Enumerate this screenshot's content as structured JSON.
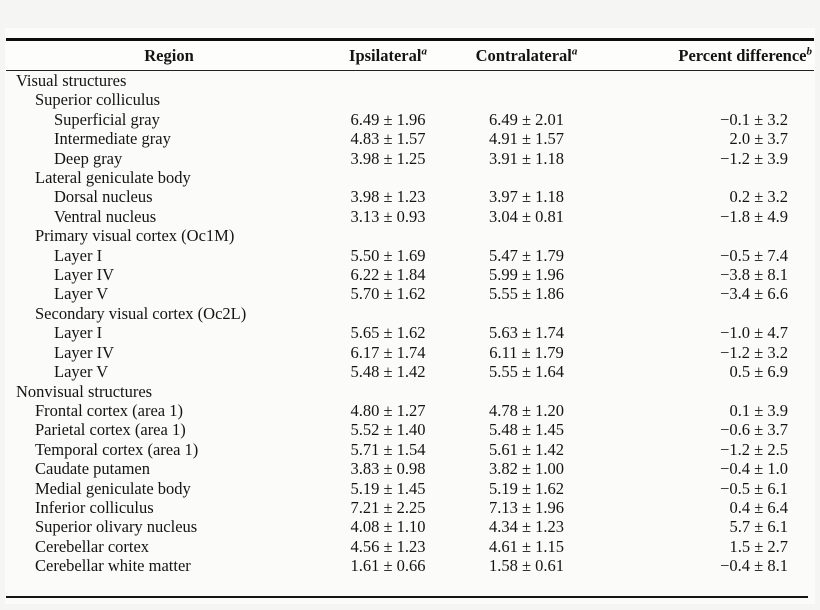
{
  "table": {
    "headers": {
      "region": "Region",
      "ipsilateral": "Ipsilateral",
      "ipsilateral_sup": "a",
      "contralateral": "Contralateral",
      "contralateral_sup": "a",
      "percent_difference": "Percent difference",
      "percent_difference_sup": "b"
    },
    "rows": [
      {
        "label": "Visual structures",
        "indent": 0,
        "ipsi": "",
        "contra": "",
        "pct": ""
      },
      {
        "label": "Superior colliculus",
        "indent": 1,
        "ipsi": "",
        "contra": "",
        "pct": ""
      },
      {
        "label": "Superficial gray",
        "indent": 2,
        "ipsi": "6.49 ± 1.96",
        "contra": "6.49 ± 2.01",
        "pct": "−0.1 ± 3.2"
      },
      {
        "label": "Intermediate gray",
        "indent": 2,
        "ipsi": "4.83 ± 1.57",
        "contra": "4.91 ± 1.57",
        "pct": "2.0 ± 3.7"
      },
      {
        "label": "Deep gray",
        "indent": 2,
        "ipsi": "3.98 ± 1.25",
        "contra": "3.91 ± 1.18",
        "pct": "−1.2 ± 3.9"
      },
      {
        "label": "Lateral geniculate body",
        "indent": 1,
        "ipsi": "",
        "contra": "",
        "pct": ""
      },
      {
        "label": "Dorsal nucleus",
        "indent": 2,
        "ipsi": "3.98 ± 1.23",
        "contra": "3.97 ± 1.18",
        "pct": "0.2 ± 3.2"
      },
      {
        "label": "Ventral nucleus",
        "indent": 2,
        "ipsi": "3.13 ± 0.93",
        "contra": "3.04 ± 0.81",
        "pct": "−1.8 ± 4.9"
      },
      {
        "label": "Primary visual cortex (Oc1M)",
        "indent": 1,
        "ipsi": "",
        "contra": "",
        "pct": ""
      },
      {
        "label": "Layer I",
        "indent": 2,
        "ipsi": "5.50 ± 1.69",
        "contra": "5.47 ± 1.79",
        "pct": "−0.5 ± 7.4"
      },
      {
        "label": "Layer IV",
        "indent": 2,
        "ipsi": "6.22 ± 1.84",
        "contra": "5.99 ± 1.96",
        "pct": "−3.8 ± 8.1"
      },
      {
        "label": "Layer V",
        "indent": 2,
        "ipsi": "5.70 ± 1.62",
        "contra": "5.55 ± 1.86",
        "pct": "−3.4 ± 6.6"
      },
      {
        "label": "Secondary visual cortex (Oc2L)",
        "indent": 1,
        "ipsi": "",
        "contra": "",
        "pct": ""
      },
      {
        "label": "Layer I",
        "indent": 2,
        "ipsi": "5.65 ± 1.62",
        "contra": "5.63 ± 1.74",
        "pct": "−1.0 ± 4.7"
      },
      {
        "label": "Layer IV",
        "indent": 2,
        "ipsi": "6.17 ± 1.74",
        "contra": "6.11 ± 1.79",
        "pct": "−1.2 ± 3.2"
      },
      {
        "label": "Layer V",
        "indent": 2,
        "ipsi": "5.48 ± 1.42",
        "contra": "5.55 ± 1.64",
        "pct": "0.5 ± 6.9"
      },
      {
        "label": "Nonvisual structures",
        "indent": 0,
        "ipsi": "",
        "contra": "",
        "pct": ""
      },
      {
        "label": "Frontal cortex (area 1)",
        "indent": 1,
        "ipsi": "4.80 ± 1.27",
        "contra": "4.78 ± 1.20",
        "pct": "0.1 ± 3.9"
      },
      {
        "label": "Parietal cortex (area 1)",
        "indent": 1,
        "ipsi": "5.52 ± 1.40",
        "contra": "5.48 ± 1.45",
        "pct": "−0.6 ± 3.7"
      },
      {
        "label": "Temporal cortex (area 1)",
        "indent": 1,
        "ipsi": "5.71 ± 1.54",
        "contra": "5.61 ± 1.42",
        "pct": "−1.2 ± 2.5"
      },
      {
        "label": "Caudate putamen",
        "indent": 1,
        "ipsi": "3.83 ± 0.98",
        "contra": "3.82 ± 1.00",
        "pct": "−0.4 ± 1.0"
      },
      {
        "label": "Medial geniculate body",
        "indent": 1,
        "ipsi": "5.19 ± 1.45",
        "contra": "5.19 ± 1.62",
        "pct": "−0.5 ± 6.1"
      },
      {
        "label": "Inferior colliculus",
        "indent": 1,
        "ipsi": "7.21 ± 2.25",
        "contra": "7.13 ± 1.96",
        "pct": "0.4 ± 6.4"
      },
      {
        "label": "Superior olivary nucleus",
        "indent": 1,
        "ipsi": "4.08 ± 1.10",
        "contra": "4.34 ± 1.23",
        "pct": "5.7 ± 6.1"
      },
      {
        "label": "Cerebellar cortex",
        "indent": 1,
        "ipsi": "4.56 ± 1.23",
        "contra": "4.61 ± 1.15",
        "pct": "1.5 ± 2.7"
      },
      {
        "label": "Cerebellar white matter",
        "indent": 1,
        "ipsi": "1.61 ± 0.66",
        "contra": "1.58 ± 0.61",
        "pct": "−0.4 ± 8.1"
      }
    ]
  }
}
